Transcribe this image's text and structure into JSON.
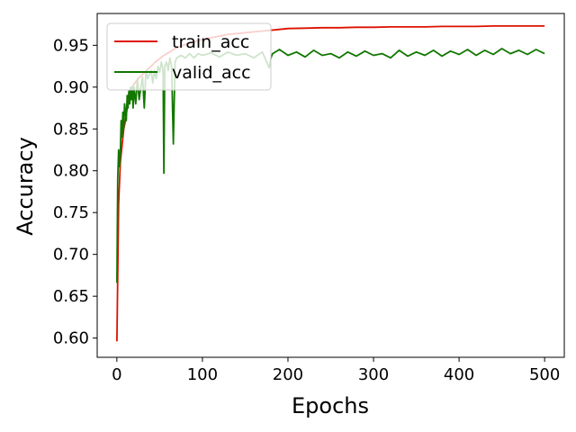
{
  "chart_data": {
    "type": "line",
    "title": "",
    "xlabel": "Epochs",
    "ylabel": "Accuracy",
    "xlim": [
      -23,
      523
    ],
    "ylim": [
      0.577,
      0.988
    ],
    "xticks": [
      0,
      100,
      200,
      300,
      400,
      500
    ],
    "xtick_labels": [
      "0",
      "100",
      "200",
      "300",
      "400",
      "500"
    ],
    "yticks": [
      0.6,
      0.65,
      0.7,
      0.75,
      0.8,
      0.85,
      0.9,
      0.95
    ],
    "ytick_labels": [
      "0.60",
      "0.65",
      "0.70",
      "0.75",
      "0.80",
      "0.85",
      "0.90",
      "0.95"
    ],
    "grid": false,
    "legend_position": "top-left",
    "legend_alpha": 0.8,
    "series": [
      {
        "name": "train_acc",
        "color": "#dd1100",
        "x": [
          0,
          2,
          4,
          6,
          8,
          10,
          12,
          15,
          18,
          21,
          25,
          30,
          35,
          40,
          45,
          50,
          55,
          60,
          65,
          70,
          80,
          90,
          100,
          110,
          120,
          130,
          140,
          150,
          160,
          170,
          180,
          190,
          200,
          220,
          240,
          260,
          280,
          300,
          320,
          340,
          360,
          380,
          400,
          420,
          440,
          460,
          480,
          500
        ],
        "y": [
          0.596,
          0.76,
          0.81,
          0.83,
          0.85,
          0.86,
          0.875,
          0.89,
          0.9,
          0.905,
          0.91,
          0.915,
          0.92,
          0.925,
          0.93,
          0.934,
          0.938,
          0.941,
          0.944,
          0.947,
          0.951,
          0.954,
          0.957,
          0.959,
          0.961,
          0.963,
          0.964,
          0.965,
          0.966,
          0.967,
          0.968,
          0.969,
          0.97,
          0.9705,
          0.971,
          0.971,
          0.9715,
          0.9715,
          0.972,
          0.972,
          0.972,
          0.9725,
          0.9725,
          0.9725,
          0.973,
          0.973,
          0.973,
          0.973
        ]
      },
      {
        "name": "valid_acc",
        "color": "#117700",
        "x": [
          0,
          1,
          2,
          3,
          4,
          5,
          6,
          7,
          8,
          9,
          10,
          11,
          12,
          13,
          14,
          15,
          16,
          17,
          18,
          19,
          20,
          22,
          24,
          26,
          28,
          30,
          32,
          34,
          36,
          38,
          40,
          42,
          44,
          46,
          48,
          50,
          52,
          54,
          55,
          56,
          58,
          60,
          62,
          64,
          66,
          68,
          70,
          75,
          80,
          85,
          90,
          95,
          100,
          110,
          120,
          130,
          140,
          150,
          160,
          170,
          178,
          180,
          182,
          190,
          200,
          210,
          220,
          230,
          240,
          250,
          260,
          270,
          280,
          290,
          300,
          310,
          320,
          330,
          340,
          350,
          360,
          370,
          380,
          390,
          400,
          410,
          420,
          430,
          440,
          450,
          460,
          470,
          480,
          490,
          500
        ],
        "y": [
          0.666,
          0.79,
          0.825,
          0.805,
          0.82,
          0.86,
          0.84,
          0.87,
          0.85,
          0.88,
          0.87,
          0.86,
          0.89,
          0.875,
          0.895,
          0.88,
          0.9,
          0.885,
          0.9,
          0.875,
          0.9,
          0.88,
          0.91,
          0.885,
          0.9,
          0.912,
          0.875,
          0.92,
          0.91,
          0.915,
          0.92,
          0.905,
          0.92,
          0.91,
          0.925,
          0.918,
          0.93,
          0.92,
          0.797,
          0.925,
          0.93,
          0.92,
          0.935,
          0.925,
          0.832,
          0.93,
          0.935,
          0.938,
          0.935,
          0.94,
          0.935,
          0.94,
          0.938,
          0.941,
          0.936,
          0.942,
          0.938,
          0.94,
          0.935,
          0.942,
          0.923,
          0.935,
          0.94,
          0.945,
          0.938,
          0.942,
          0.936,
          0.944,
          0.938,
          0.94,
          0.935,
          0.942,
          0.937,
          0.943,
          0.938,
          0.94,
          0.935,
          0.944,
          0.937,
          0.942,
          0.938,
          0.944,
          0.937,
          0.943,
          0.939,
          0.945,
          0.938,
          0.944,
          0.939,
          0.946,
          0.94,
          0.944,
          0.939,
          0.945,
          0.94
        ]
      }
    ]
  }
}
